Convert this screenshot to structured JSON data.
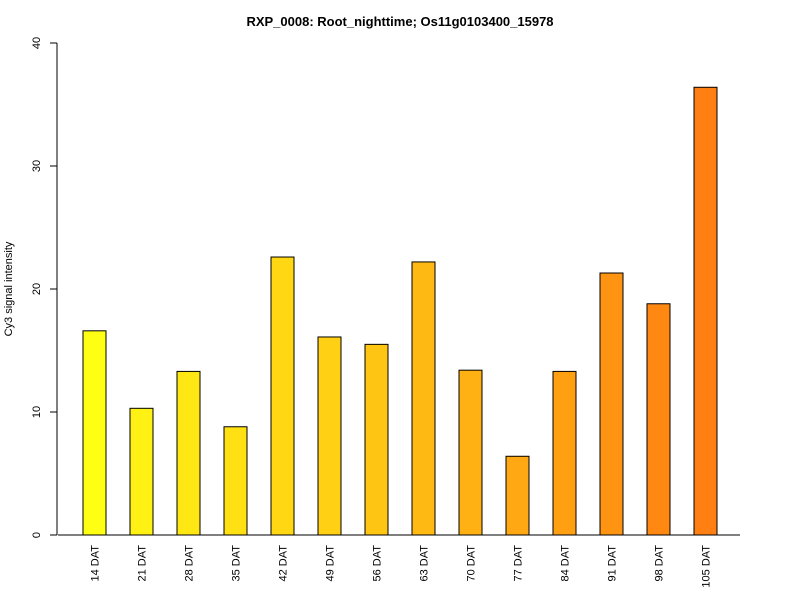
{
  "chart_data": {
    "type": "bar",
    "title": "RXP_0008: Root_nighttime; Os11g0103400_15978",
    "xlabel": "",
    "ylabel": "Cy3 signal intensity",
    "ylim": [
      0,
      40
    ],
    "yticks": [
      0,
      10,
      20,
      30,
      40
    ],
    "grid": false,
    "legend": "none",
    "categories": [
      "14 DAT",
      "21 DAT",
      "28 DAT",
      "35 DAT",
      "42 DAT",
      "49 DAT",
      "56 DAT",
      "63 DAT",
      "70 DAT",
      "77 DAT",
      "84 DAT",
      "91 DAT",
      "98 DAT",
      "105 DAT"
    ],
    "values": [
      16.6,
      10.3,
      13.3,
      8.8,
      22.6,
      16.1,
      15.5,
      22.2,
      13.4,
      6.4,
      13.3,
      21.3,
      18.8,
      36.4
    ],
    "colors": [
      "#FFFF14",
      "#FFF113",
      "#FFE713",
      "#FFE013",
      "#FFD713",
      "#FFD013",
      "#FFC513",
      "#FFB913",
      "#FFB113",
      "#FFA813",
      "#FFA013",
      "#FF9413",
      "#FF8813",
      "#FF7F13"
    ]
  }
}
